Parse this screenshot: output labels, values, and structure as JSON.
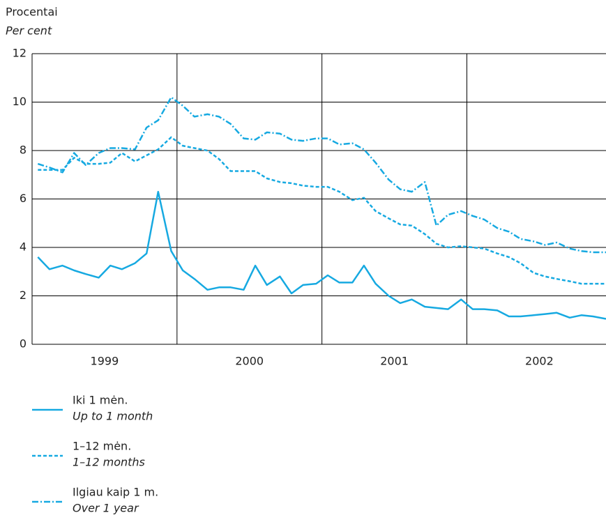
{
  "chart_data": {
    "type": "line",
    "ylabel": "Procentai",
    "ylabel_en": "Per cent",
    "x": [
      1999.04,
      1999.12,
      1999.21,
      1999.29,
      1999.37,
      1999.46,
      1999.54,
      1999.62,
      1999.71,
      1999.79,
      1999.87,
      1999.96,
      2000.04,
      2000.12,
      2000.21,
      2000.29,
      2000.37,
      2000.46,
      2000.54,
      2000.62,
      2000.71,
      2000.79,
      2000.87,
      2000.96,
      2001.04,
      2001.12,
      2001.21,
      2001.29,
      2001.37,
      2001.46,
      2001.54,
      2001.62,
      2001.71,
      2001.79,
      2001.87,
      2001.96,
      2002.04,
      2002.12,
      2002.21,
      2002.29,
      2002.37,
      2002.46,
      2002.54,
      2002.62,
      2002.71,
      2002.79,
      2002.87,
      2002.96
    ],
    "series": [
      {
        "name": "Iki 1 mėn.",
        "name_en": "Up to 1 month",
        "color": "#16a9e1",
        "style": "solid",
        "values": [
          3.6,
          3.1,
          3.25,
          3.05,
          2.9,
          2.75,
          3.25,
          3.1,
          3.35,
          3.75,
          6.3,
          3.85,
          3.05,
          2.7,
          2.25,
          2.35,
          2.35,
          2.25,
          3.25,
          2.45,
          2.8,
          2.1,
          2.45,
          2.5,
          2.85,
          2.55,
          2.55,
          3.25,
          2.5,
          2.0,
          1.7,
          1.85,
          1.55,
          1.5,
          1.45,
          1.85,
          1.45,
          1.45,
          1.4,
          1.15,
          1.15,
          1.2,
          1.25,
          1.3,
          1.1,
          1.2,
          1.15,
          1.05
        ]
      },
      {
        "name": "1–12 mėn.",
        "name_en": "1–12 months",
        "color": "#16a9e1",
        "style": "dashed",
        "values": [
          7.2,
          7.2,
          7.2,
          7.7,
          7.45,
          7.45,
          7.5,
          7.9,
          7.55,
          7.8,
          8.05,
          8.55,
          8.2,
          8.1,
          8.0,
          7.65,
          7.15,
          7.15,
          7.15,
          6.85,
          6.7,
          6.65,
          6.55,
          6.5,
          6.5,
          6.3,
          5.95,
          6.05,
          5.5,
          5.2,
          4.95,
          4.9,
          4.55,
          4.15,
          4.0,
          4.05,
          4.0,
          3.95,
          3.75,
          3.6,
          3.35,
          2.95,
          2.8,
          2.7,
          2.6,
          2.5,
          2.5,
          2.5
        ]
      },
      {
        "name": "Ilgiau kaip 1 m.",
        "name_en": "Over 1 year",
        "color": "#16a9e1",
        "style": "dashdot",
        "values": [
          7.45,
          7.3,
          7.1,
          7.9,
          7.4,
          7.9,
          8.1,
          8.1,
          8.05,
          8.95,
          9.25,
          10.2,
          9.85,
          9.4,
          9.5,
          9.4,
          9.1,
          8.5,
          8.45,
          8.75,
          8.7,
          8.45,
          8.4,
          8.5,
          8.5,
          8.25,
          8.3,
          8.05,
          7.5,
          6.8,
          6.4,
          6.3,
          6.7,
          4.9,
          5.35,
          5.5,
          5.3,
          5.15,
          4.8,
          4.65,
          4.35,
          4.25,
          4.1,
          4.2,
          3.95,
          3.85,
          3.8,
          3.8
        ]
      }
    ],
    "xlim": [
      1999,
      2002.96
    ],
    "xticks": [
      {
        "value": 1999.5,
        "label": "1999"
      },
      {
        "value": 2000.5,
        "label": "2000"
      },
      {
        "value": 2001.5,
        "label": "2001"
      },
      {
        "value": 2002.5,
        "label": "2002"
      }
    ],
    "xgrid": [
      2000,
      2001,
      2002
    ],
    "ylim": [
      0,
      12
    ],
    "yticks": [
      0,
      2,
      4,
      6,
      8,
      10,
      12
    ],
    "grid": true
  }
}
